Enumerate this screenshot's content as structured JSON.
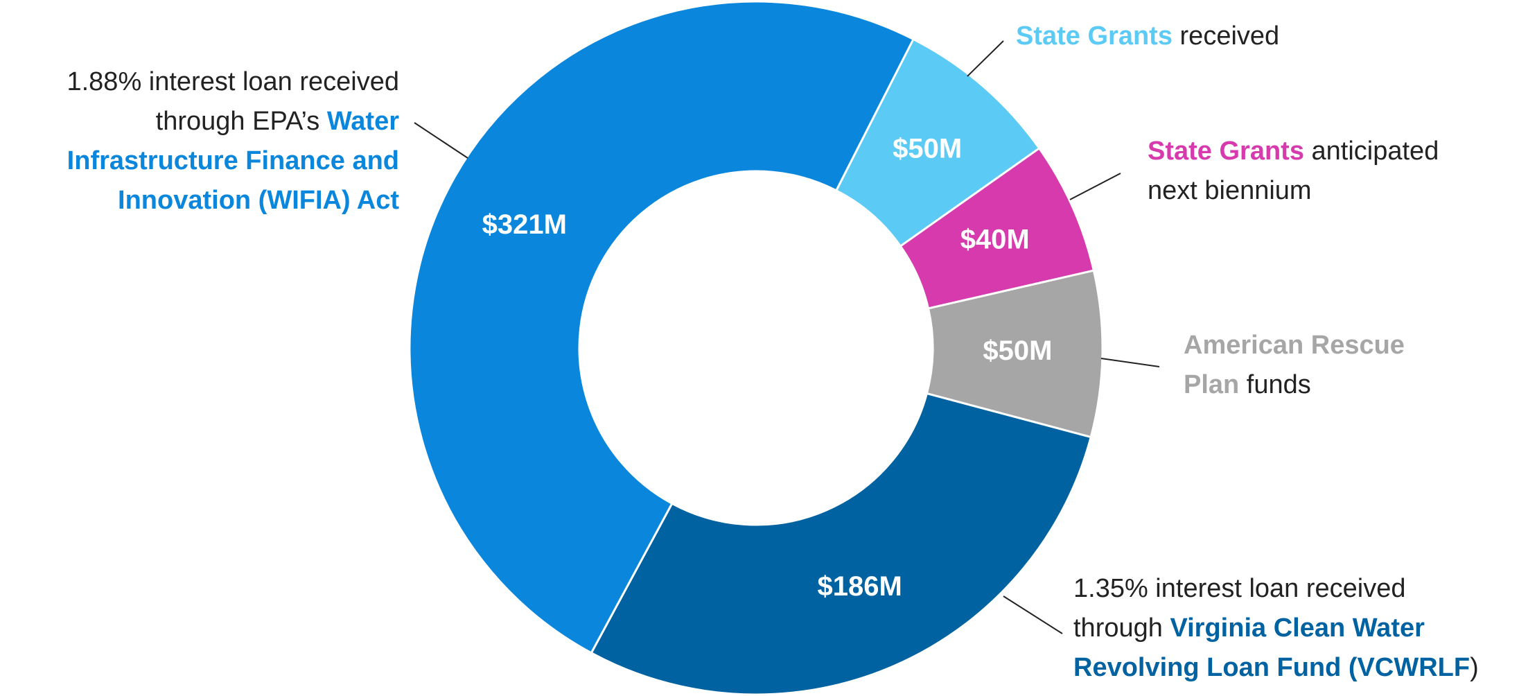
{
  "chart_data": {
    "type": "donut",
    "values": [
      50,
      40,
      50,
      186,
      321
    ],
    "value_labels": [
      "$50M",
      "$40M",
      "$50M",
      "$186M",
      "$321M"
    ],
    "colors": [
      "#5bcbf5",
      "#d63aad",
      "#a6a6a6",
      "#0062a1",
      "#0a87dc"
    ],
    "labels": [
      [
        [
          {
            "text": "State Grants",
            "accent": true
          },
          {
            "text": " received",
            "accent": false
          }
        ]
      ],
      [
        [
          {
            "text": "State Grants",
            "accent": true
          },
          {
            "text": " anticipated",
            "accent": false
          }
        ],
        [
          {
            "text": "next biennium",
            "accent": false
          }
        ]
      ],
      [
        [
          {
            "text": "American Rescue",
            "accent": true
          }
        ],
        [
          {
            "text": "Plan",
            "accent": true
          },
          {
            "text": " funds",
            "accent": false
          }
        ]
      ],
      [
        [
          {
            "text": "1.35% interest loan received",
            "accent": false
          }
        ],
        [
          {
            "text": "through ",
            "accent": false
          },
          {
            "text": "Virginia Clean Water",
            "accent": true
          }
        ],
        [
          {
            "text": "Revolving Loan Fund (VCWRLF",
            "accent": true
          },
          {
            "text": ")",
            "accent": false
          }
        ]
      ],
      [
        [
          {
            "text": "1.88% interest loan received",
            "accent": false
          }
        ],
        [
          {
            "text": "through EPA’s ",
            "accent": false
          },
          {
            "text": "Water",
            "accent": true
          }
        ],
        [
          {
            "text": "Infrastructure Finance and",
            "accent": true
          }
        ],
        [
          {
            "text": "Innovation (WIFIA) Act",
            "accent": true
          }
        ]
      ]
    ]
  }
}
